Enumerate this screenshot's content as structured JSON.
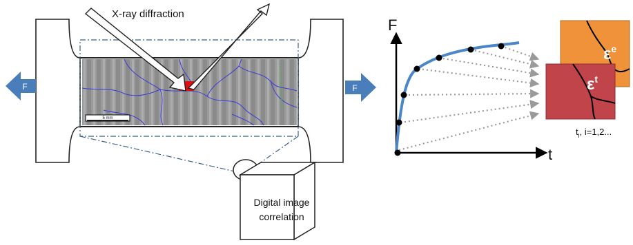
{
  "labels": {
    "xray": "X-ray diffraction",
    "force_left": "F",
    "force_right": "F",
    "scale_bar": "5 mm",
    "dic_line1": "Digital image",
    "dic_line2": "correlation",
    "axis_y": "F",
    "axis_x": "t",
    "strain_elastic_base": "ε",
    "strain_elastic_sup": "e",
    "strain_total_base": "ε",
    "strain_total_sup": "t",
    "time_base": "t",
    "time_sub": "i",
    "time_rest": ", i=1,2..."
  },
  "colors": {
    "arrow_blue": "#4a7ebb",
    "curve_blue": "#4a86c8",
    "elastic_box": "#f0923a",
    "total_box": "#c0444a",
    "marker_red": "#e01010",
    "grain_lines": "#3b3bd8"
  },
  "icons": [
    "camera-icon",
    "force-arrow-icon"
  ]
}
